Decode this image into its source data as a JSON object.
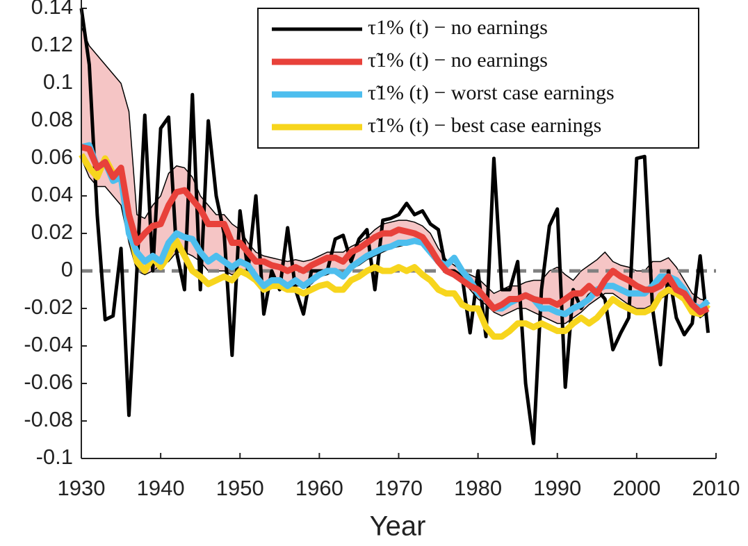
{
  "chart_data": {
    "type": "line",
    "xlabel": "Year",
    "x": [
      1930,
      1931,
      1932,
      1933,
      1934,
      1935,
      1936,
      1937,
      1938,
      1939,
      1940,
      1941,
      1942,
      1943,
      1944,
      1945,
      1946,
      1947,
      1948,
      1949,
      1950,
      1951,
      1952,
      1953,
      1954,
      1955,
      1956,
      1957,
      1958,
      1959,
      1960,
      1961,
      1962,
      1963,
      1964,
      1965,
      1966,
      1967,
      1968,
      1969,
      1970,
      1971,
      1972,
      1973,
      1974,
      1975,
      1976,
      1977,
      1978,
      1979,
      1980,
      1981,
      1982,
      1983,
      1984,
      1985,
      1986,
      1987,
      1988,
      1989,
      1990,
      1991,
      1992,
      1993,
      1994,
      1995,
      1996,
      1997,
      1998,
      1999,
      2000,
      2001,
      2002,
      2003,
      2004,
      2005,
      2006,
      2007,
      2008,
      2009
    ],
    "xlim": [
      1930,
      2010
    ],
    "xticks": [
      1930,
      1940,
      1950,
      1960,
      1970,
      1980,
      1990,
      2000,
      2010
    ],
    "ylim": [
      -0.1,
      0.14
    ],
    "yticks": [
      0.14,
      0.12,
      0.1,
      0.08,
      0.06,
      0.04,
      0.02,
      0,
      -0.02,
      -0.04,
      -0.06,
      -0.08,
      -0.1
    ],
    "hline": 0,
    "hline_color": "#808080",
    "band": {
      "color": "#f5c5c5",
      "edge_color": "#000000",
      "upper": [
        0.13,
        0.12,
        0.115,
        0.11,
        0.105,
        0.1,
        0.085,
        0.03,
        0.028,
        0.035,
        0.04,
        0.052,
        0.056,
        0.055,
        0.05,
        0.04,
        0.035,
        0.03,
        0.03,
        0.025,
        0.022,
        0.015,
        0.01,
        0.008,
        0.007,
        0.006,
        0.005,
        0.006,
        0.005,
        0.006,
        0.008,
        0.01,
        0.01,
        0.01,
        0.013,
        0.015,
        0.018,
        0.022,
        0.025,
        0.026,
        0.027,
        0.027,
        0.026,
        0.024,
        0.02,
        0.012,
        0.006,
        0.003,
        0.0,
        -0.002,
        -0.004,
        -0.008,
        -0.012,
        -0.01,
        -0.008,
        -0.008,
        -0.006,
        -0.005,
        -0.005,
        0.0,
        0.002,
        -0.002,
        -0.005,
        0.0,
        0.003,
        0.006,
        0.01,
        0.005,
        0.003,
        0.002,
        0.0,
        0.0,
        0.005,
        0.005,
        0.007,
        0.002,
        -0.005,
        -0.012,
        -0.015,
        -0.016
      ],
      "lower": [
        0.06,
        0.05,
        0.045,
        0.045,
        0.04,
        0.035,
        0.015,
        0.0,
        -0.002,
        0.0,
        0.003,
        0.005,
        0.01,
        0.01,
        0.008,
        0.005,
        0.0,
        0.0,
        0.0,
        -0.002,
        0.0,
        0.0,
        -0.005,
        -0.008,
        -0.008,
        -0.005,
        -0.008,
        -0.008,
        -0.008,
        -0.007,
        -0.003,
        -0.002,
        0.0,
        -0.002,
        0.001,
        0.003,
        0.006,
        0.008,
        0.01,
        0.012,
        0.013,
        0.014,
        0.015,
        0.014,
        0.008,
        0.003,
        0.0,
        0.0,
        -0.005,
        -0.01,
        -0.015,
        -0.018,
        -0.022,
        -0.024,
        -0.022,
        -0.02,
        -0.02,
        -0.022,
        -0.024,
        -0.026,
        -0.028,
        -0.028,
        -0.025,
        -0.022,
        -0.018,
        -0.015,
        -0.012,
        -0.012,
        -0.015,
        -0.018,
        -0.02,
        -0.02,
        -0.018,
        -0.015,
        -0.012,
        -0.012,
        -0.015,
        -0.02,
        -0.025,
        -0.022
      ]
    },
    "series": [
      {
        "name": "τ1% (t) − no earnings",
        "color": "#000000",
        "width": 5,
        "values": [
          0.14,
          0.11,
          0.03,
          -0.026,
          -0.024,
          0.012,
          -0.077,
          0.0,
          0.083,
          0.0,
          0.076,
          0.082,
          0.01,
          -0.01,
          0.094,
          -0.01,
          0.08,
          0.04,
          0.02,
          -0.045,
          0.032,
          0.0,
          0.04,
          -0.023,
          0.0,
          -0.01,
          0.023,
          -0.01,
          -0.023,
          0.0,
          0.0,
          0.0,
          0.017,
          0.019,
          0.005,
          0.017,
          0.022,
          -0.01,
          0.027,
          0.028,
          0.03,
          0.036,
          0.03,
          0.032,
          0.025,
          0.022,
          0.0,
          0.0,
          -0.003,
          -0.033,
          0.0,
          -0.035,
          0.06,
          -0.01,
          -0.01,
          0.005,
          -0.06,
          -0.092,
          -0.01,
          0.024,
          0.033,
          -0.062,
          -0.01,
          -0.02,
          -0.013,
          -0.01,
          -0.015,
          -0.042,
          -0.033,
          -0.025,
          0.06,
          0.061,
          -0.02,
          -0.05,
          0.0,
          -0.025,
          -0.034,
          -0.028,
          0.008,
          -0.033
        ]
      },
      {
        "name": "τ̃1% (t) − no earnings",
        "color": "#e8413a",
        "width": 9,
        "values": [
          0.066,
          0.065,
          0.055,
          0.058,
          0.05,
          0.055,
          0.03,
          0.015,
          0.02,
          0.024,
          0.025,
          0.035,
          0.042,
          0.043,
          0.038,
          0.033,
          0.025,
          0.025,
          0.025,
          0.015,
          0.015,
          0.01,
          0.005,
          0.005,
          0.003,
          0.002,
          0.0,
          0.002,
          0.0,
          0.003,
          0.005,
          0.007,
          0.007,
          0.005,
          0.01,
          0.012,
          0.015,
          0.018,
          0.02,
          0.02,
          0.022,
          0.021,
          0.02,
          0.018,
          0.012,
          0.005,
          0.0,
          -0.002,
          -0.005,
          -0.008,
          -0.01,
          -0.015,
          -0.02,
          -0.018,
          -0.015,
          -0.015,
          -0.013,
          -0.015,
          -0.016,
          -0.016,
          -0.018,
          -0.015,
          -0.012,
          -0.012,
          -0.008,
          -0.012,
          -0.005,
          0.0,
          -0.003,
          -0.005,
          -0.008,
          -0.01,
          -0.01,
          -0.008,
          -0.003,
          -0.01,
          -0.012,
          -0.018,
          -0.022,
          -0.02
        ]
      },
      {
        "name": "τ̃1% (t) − worst case earnings",
        "color": "#4dbeee",
        "width": 9,
        "values": [
          0.066,
          0.067,
          0.055,
          0.058,
          0.048,
          0.05,
          0.02,
          0.01,
          0.005,
          0.008,
          0.005,
          0.015,
          0.02,
          0.018,
          0.017,
          0.01,
          0.005,
          0.008,
          0.005,
          0.002,
          0.005,
          0.003,
          -0.003,
          -0.008,
          -0.005,
          -0.005,
          -0.008,
          -0.005,
          -0.008,
          -0.005,
          -0.002,
          0.0,
          0.0,
          -0.003,
          0.002,
          0.005,
          0.008,
          0.01,
          0.012,
          0.013,
          0.015,
          0.015,
          0.016,
          0.015,
          0.01,
          0.005,
          0.003,
          0.007,
          0.0,
          -0.005,
          -0.012,
          -0.015,
          -0.02,
          -0.02,
          -0.017,
          -0.015,
          -0.013,
          -0.015,
          -0.02,
          -0.02,
          -0.022,
          -0.023,
          -0.02,
          -0.018,
          -0.015,
          -0.01,
          -0.008,
          -0.008,
          -0.01,
          -0.012,
          -0.012,
          -0.012,
          -0.008,
          -0.003,
          -0.003,
          -0.005,
          -0.01,
          -0.018,
          -0.02,
          -0.016
        ]
      },
      {
        "name": "τ̃1% (t) − best case earnings",
        "color": "#f7d51d",
        "width": 9,
        "values": [
          0.062,
          0.055,
          0.05,
          0.06,
          0.052,
          0.05,
          0.025,
          0.005,
          0.0,
          0.007,
          0.002,
          0.008,
          0.016,
          0.008,
          0.0,
          -0.003,
          -0.007,
          -0.005,
          -0.003,
          -0.005,
          0.0,
          -0.002,
          -0.005,
          -0.01,
          -0.008,
          -0.008,
          -0.01,
          -0.01,
          -0.012,
          -0.01,
          -0.008,
          -0.007,
          -0.01,
          -0.01,
          -0.005,
          -0.003,
          0.0,
          0.002,
          0.0,
          0.0,
          0.002,
          0.0,
          0.002,
          -0.002,
          -0.005,
          -0.01,
          -0.012,
          -0.012,
          -0.018,
          -0.02,
          -0.02,
          -0.03,
          -0.035,
          -0.035,
          -0.032,
          -0.028,
          -0.028,
          -0.03,
          -0.028,
          -0.03,
          -0.032,
          -0.032,
          -0.028,
          -0.025,
          -0.028,
          -0.025,
          -0.02,
          -0.015,
          -0.018,
          -0.02,
          -0.022,
          -0.022,
          -0.02,
          -0.013,
          -0.01,
          -0.012,
          -0.015,
          -0.022,
          -0.023,
          -0.018
        ]
      }
    ],
    "draw_order": [
      0,
      3,
      2,
      1
    ],
    "legend": "top-right"
  }
}
